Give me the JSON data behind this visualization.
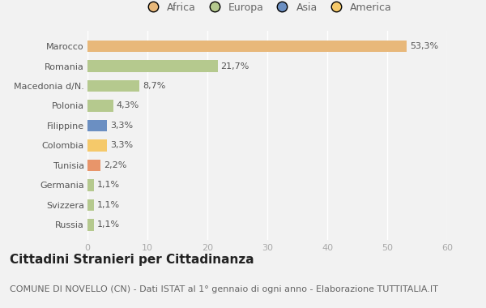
{
  "categories": [
    "Russia",
    "Svizzera",
    "Germania",
    "Tunisia",
    "Colombia",
    "Filippine",
    "Polonia",
    "Macedonia d/N.",
    "Romania",
    "Marocco"
  ],
  "values": [
    1.1,
    1.1,
    1.1,
    2.2,
    3.3,
    3.3,
    4.3,
    8.7,
    21.7,
    53.3
  ],
  "labels": [
    "1,1%",
    "1,1%",
    "1,1%",
    "2,2%",
    "3,3%",
    "3,3%",
    "4,3%",
    "8,7%",
    "21,7%",
    "53,3%"
  ],
  "colors": [
    "#b5c98e",
    "#b5c98e",
    "#b5c98e",
    "#e8956a",
    "#f5c96a",
    "#6b8fc2",
    "#b5c98e",
    "#b5c98e",
    "#b5c98e",
    "#e8b87a"
  ],
  "legend": [
    {
      "label": "Africa",
      "color": "#e8b87a"
    },
    {
      "label": "Europa",
      "color": "#b5c98e"
    },
    {
      "label": "Asia",
      "color": "#6b8fc2"
    },
    {
      "label": "America",
      "color": "#f5c96a"
    }
  ],
  "xlim": [
    0,
    60
  ],
  "xticks": [
    0,
    10,
    20,
    30,
    40,
    50,
    60
  ],
  "title": "Cittadini Stranieri per Cittadinanza",
  "subtitle": "COMUNE DI NOVELLO (CN) - Dati ISTAT al 1° gennaio di ogni anno - Elaborazione TUTTITALIA.IT",
  "background_color": "#f2f2f2",
  "bar_height": 0.6,
  "title_fontsize": 11,
  "subtitle_fontsize": 8,
  "label_fontsize": 8,
  "tick_fontsize": 8,
  "legend_fontsize": 9
}
